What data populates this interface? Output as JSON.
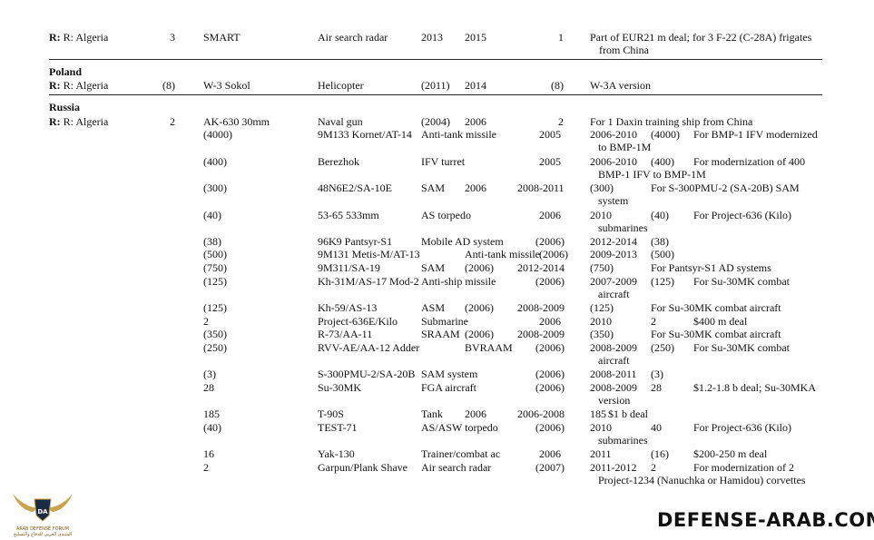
{
  "sections": [
    {
      "country": "",
      "rows": [
        {
          "cells": [
            "R: Algeria",
            "3",
            "SMART",
            "Air search radar",
            "2013",
            "2015",
            "1",
            "Part of EUR21 m deal; for 3 F-22 (C-28A) frigates",
            "from China"
          ]
        }
      ]
    },
    {
      "country": "Poland",
      "rows": [
        {
          "cells": [
            "R: Algeria",
            "(8)",
            "W-3 Sokol",
            "Helicopter",
            "(2011)",
            "2014",
            "(8)",
            "W-3A version"
          ]
        }
      ]
    },
    {
      "country": "Russia",
      "rows": [
        {
          "cells": [
            "R: Algeria",
            "2",
            "AK-630 30mm",
            "Naval gun",
            "(2004)",
            "2006",
            "2",
            "For 1 Daxin training ship from China"
          ]
        },
        {
          "cells": [
            "(4000)",
            "9M133 Kornet/AT-14",
            "Anti-tank missile",
            "2005",
            "2006-2010",
            "(4000)",
            "For BMP-1 IFV modernized",
            "to BMP-1M"
          ]
        },
        {
          "cells": [
            "(400)",
            "Berezhok",
            "IFV turret",
            "2005",
            "2006-2010",
            "(400)",
            "For modernization of 400",
            "BMP-1 IFV to BMP-1M"
          ]
        },
        {
          "cells": [
            "(300)",
            "48N6E2/SA-10E",
            "SAM",
            "2006",
            "2008-2011",
            "(300)",
            "For S-300PMU-2 (SA-20B) SAM",
            "system"
          ]
        },
        {
          "cells": [
            "(40)",
            "53-65 533mm",
            "AS torpedo",
            "2006",
            "2010",
            "(40)",
            "For Project-636 (Kilo)",
            "submarines"
          ]
        },
        {
          "cells": [
            "(38)",
            "96K9 Pantsyr-S1",
            "Mobile AD system",
            "(2006)",
            "2012-2014",
            "(38)"
          ]
        },
        {
          "cells": [
            "(500)",
            "9M131 Metis-M/AT-13",
            "Anti-tank missile",
            "(2006)",
            "2009-2013",
            "(500)"
          ]
        },
        {
          "cells": [
            "(750)",
            "9M311/SA-19",
            "SAM",
            "(2006)",
            "2012-2014",
            "(750)",
            "For Pantsyr-S1 AD systems"
          ]
        },
        {
          "cells": [
            "(125)",
            "Kh-31M/AS-17 Mod-2",
            "Anti-ship missile",
            "(2006)",
            "2007-2009",
            "(125)",
            "For Su-30MK combat",
            "aircraft"
          ]
        },
        {
          "cells": [
            "(125)",
            "Kh-59/AS-13",
            "ASM",
            "(2006)",
            "2008-2009",
            "(125)",
            "For Su-30MK combat aircraft"
          ]
        },
        {
          "cells": [
            "2",
            "Project-636E/Kilo",
            "Submarine",
            "2006",
            "2010",
            "2",
            "$400 m deal"
          ]
        },
        {
          "cells": [
            "(350)",
            "R-73/AA-11",
            "SRAAM",
            "(2006)",
            "2008-2009",
            "(350)",
            "For Su-30MK combat aircraft"
          ]
        },
        {
          "cells": [
            "(250)",
            "RVV-AE/AA-12 Adder",
            "BVRAAM",
            "(2006)",
            "2008-2009",
            "(250)",
            "For Su-30MK combat",
            "aircraft"
          ]
        },
        {
          "cells": [
            "(3)",
            "S-300PMU-2/SA-20B",
            "SAM system",
            "(2006)",
            "2008-2011",
            "(3)"
          ]
        },
        {
          "cells": [
            "28",
            "Su-30MK",
            "FGA aircraft",
            "(2006)",
            "2008-2009",
            "28",
            "$1.2-1.8 b deal; Su-30MKA",
            "version"
          ]
        },
        {
          "cells": [
            "185",
            "T-90S",
            "Tank",
            "2006",
            "2006-2008",
            "185",
            "$1 b deal"
          ]
        },
        {
          "cells": [
            "(40)",
            "TEST-71",
            "AS/ASW torpedo",
            "(2006)",
            "2010",
            "40",
            "For Project-636 (Kilo)",
            "submarines"
          ]
        },
        {
          "cells": [
            "16",
            "Yak-130",
            "Trainer/combat ac",
            "2006",
            "2011",
            "(16)",
            "$200-250 m deal"
          ]
        },
        {
          "cells": [
            "2",
            "Garpun/Plank Shave",
            "Air search radar",
            "(2007)",
            "2011-2012",
            "2",
            "For modernization of 2",
            "Project-1234 (Nanuchka or Hamidou) corvettes"
          ]
        }
      ]
    }
  ],
  "footer": {
    "logo_initials": "DA",
    "logo_name": "ARAB DEFENSE FORUM",
    "logo_arabic": "المنتدى العربي للدفاع والتسليح",
    "watermark": "DEFENSE-ARAB.COM",
    "accent": "#c8a44a"
  }
}
